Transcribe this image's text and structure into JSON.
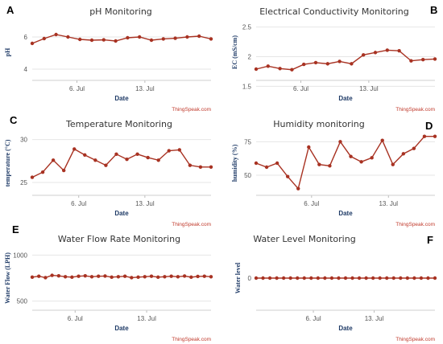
{
  "chart_data": [
    {
      "panel": "A",
      "type": "line",
      "title": "pH Monitoring",
      "xlabel": "Date",
      "ylabel": "pH",
      "credit": "ThingSpeak.com",
      "x_ticks": [
        "6. Jul",
        "13. Jul"
      ],
      "y_ticks": [
        4,
        6
      ],
      "ylim": [
        3.3,
        6.8
      ],
      "grid": true,
      "color": "#a83222",
      "series": [
        {
          "x": [
            1,
            2,
            3,
            4,
            5,
            6,
            7,
            8,
            9,
            10,
            11,
            12,
            13,
            14,
            15,
            16
          ],
          "values": [
            5.6,
            5.9,
            6.15,
            6.0,
            5.85,
            5.8,
            5.82,
            5.75,
            5.95,
            6.0,
            5.8,
            5.88,
            5.92,
            6.0,
            6.05,
            5.88
          ]
        }
      ]
    },
    {
      "panel": "B",
      "type": "line",
      "title": "Electrical Conductivity Monitoring",
      "xlabel": "Date",
      "ylabel": "EC (mS/cm)",
      "credit": "ThingSpeak.com",
      "x_ticks": [
        "6. Jul",
        "13. Jul"
      ],
      "y_ticks": [
        1.5,
        2,
        2.5
      ],
      "ylim": [
        1.6,
        2.55
      ],
      "grid": true,
      "color": "#a83222",
      "series": [
        {
          "x": [
            1,
            2,
            3,
            4,
            5,
            6,
            7,
            8,
            9,
            10,
            11,
            12,
            13,
            14,
            15,
            16
          ],
          "values": [
            1.79,
            1.84,
            1.8,
            1.78,
            1.87,
            1.9,
            1.88,
            1.92,
            1.88,
            2.03,
            2.07,
            2.11,
            2.1,
            1.93,
            1.95,
            1.96
          ]
        }
      ]
    },
    {
      "panel": "C",
      "type": "line",
      "title": "Temperature Monitoring",
      "xlabel": "Date",
      "ylabel": "temperature (°C)",
      "credit": "ThingSpeak.com",
      "x_ticks": [
        "6. Jul",
        "13. Jul"
      ],
      "y_ticks": [
        25,
        30
      ],
      "ylim": [
        23.5,
        31.0
      ],
      "grid": true,
      "color": "#a83222",
      "series": [
        {
          "x": [
            1,
            2,
            3,
            4,
            5,
            6,
            7,
            8,
            9,
            10,
            11,
            12,
            13,
            14,
            15,
            16,
            17,
            18
          ],
          "values": [
            25.6,
            26.2,
            27.6,
            26.4,
            28.9,
            28.2,
            27.6,
            27.0,
            28.3,
            27.7,
            28.3,
            27.9,
            27.6,
            28.7,
            28.8,
            27.0,
            26.8,
            26.8
          ]
        }
      ]
    },
    {
      "panel": "D",
      "type": "line",
      "title": "Humidity monitoring",
      "xlabel": "Date",
      "ylabel": "humidity (%)",
      "credit": "ThingSpeak.com",
      "x_ticks": [
        "6. Jul",
        "13. Jul"
      ],
      "y_ticks": [
        50,
        75
      ],
      "ylim": [
        35,
        83
      ],
      "grid": true,
      "color": "#a83222",
      "series": [
        {
          "x": [
            1,
            2,
            3,
            4,
            5,
            6,
            7,
            8,
            9,
            10,
            11,
            12,
            13,
            14,
            15,
            16,
            17,
            18
          ],
          "values": [
            59,
            56,
            59,
            49,
            40,
            71,
            58,
            57,
            75,
            64,
            60,
            63,
            76,
            58,
            66,
            70,
            79,
            79
          ]
        }
      ]
    },
    {
      "panel": "E",
      "type": "line",
      "title": "Water Flow Rate Monitoring",
      "xlabel": "Date",
      "ylabel": "Water Flow (LPH)",
      "credit": "ThingSpeak.com",
      "x_ticks": [
        "6. Jul",
        "13. Jul"
      ],
      "y_ticks": [
        500,
        1000
      ],
      "ylim": [
        400,
        1100
      ],
      "grid": true,
      "color": "#a83222",
      "series": [
        {
          "x": [
            1,
            2,
            3,
            4,
            5,
            6,
            7,
            8,
            9,
            10,
            11,
            12,
            13,
            14,
            15,
            16,
            17,
            18,
            19,
            20,
            21,
            22,
            23,
            24,
            25,
            26,
            27,
            28
          ],
          "values": [
            760,
            770,
            755,
            780,
            775,
            765,
            760,
            770,
            775,
            765,
            770,
            772,
            760,
            765,
            770,
            755,
            760,
            765,
            770,
            760,
            765,
            770,
            765,
            772,
            760,
            768,
            770,
            765
          ]
        }
      ]
    },
    {
      "panel": "F",
      "type": "line",
      "title": "Water Level Monitoring",
      "xlabel": "Date",
      "ylabel": "Water level",
      "credit": "ThingSpeak.com",
      "x_ticks": [
        "6. Jul",
        "13. Jul"
      ],
      "y_ticks": [
        0
      ],
      "ylim": [
        -1,
        1
      ],
      "grid": true,
      "color": "#a83222",
      "series": [
        {
          "x": [
            1,
            2,
            3,
            4,
            5,
            6,
            7,
            8,
            9,
            10,
            11,
            12,
            13,
            14,
            15,
            16,
            17,
            18,
            19,
            20,
            21,
            22,
            23,
            24,
            25,
            26,
            27
          ],
          "values": [
            0,
            0,
            0,
            0,
            0,
            0,
            0,
            0,
            0,
            0,
            0,
            0,
            0,
            0,
            0,
            0,
            0,
            0,
            0,
            0,
            0,
            0,
            0,
            0,
            0,
            0,
            0
          ]
        }
      ]
    }
  ]
}
